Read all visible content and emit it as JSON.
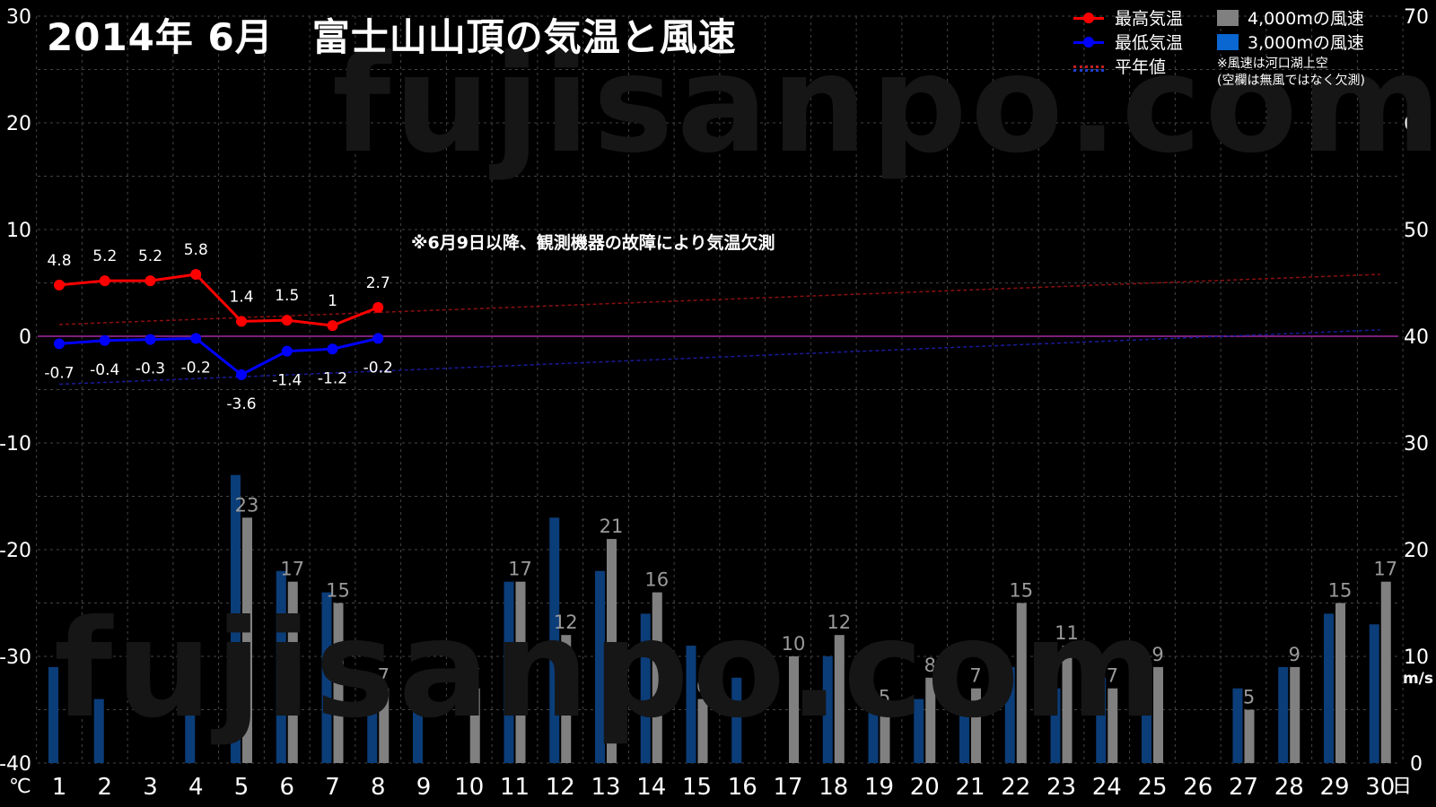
{
  "title": "2014年  6月　富士山山頂の気温と風速",
  "note": "※6月9日以降、観測機器の故障により気温欠測",
  "watermark": "fujisanpo.com",
  "legend": {
    "max_temp": "最高気温",
    "min_temp": "最低気温",
    "normal": "平年値",
    "wind_4000": "4,000mの風速",
    "wind_3000": "3,000mの風速",
    "note1": "※風速は河口湖上空",
    "note2": "(空欄は無風ではなく欠測)"
  },
  "colors": {
    "max_temp": "#ff0000",
    "min_temp": "#0000ff",
    "wind_4000": "#808080",
    "wind_3000": "#0b3d79",
    "legend_3000": "#0a66d0",
    "normal_max": "#8b1010",
    "normal_min": "#1a1a9a",
    "zero_line": "#7a207a",
    "grid": "#444444"
  },
  "chart_data": {
    "type": "bar+line",
    "x_unit": "日",
    "y_left_unit": "℃",
    "y_right_unit": "m/s",
    "ylim_left": [
      -40,
      30
    ],
    "ylim_right": [
      0,
      70
    ],
    "yticks_left": [
      30,
      20,
      10,
      0,
      -10,
      -20,
      -30,
      -40
    ],
    "yticks_right": [
      70,
      60,
      50,
      40,
      30,
      20,
      10,
      0
    ],
    "days": [
      1,
      2,
      3,
      4,
      5,
      6,
      7,
      8,
      9,
      10,
      11,
      12,
      13,
      14,
      15,
      16,
      17,
      18,
      19,
      20,
      21,
      22,
      23,
      24,
      25,
      26,
      27,
      28,
      29,
      30
    ],
    "max_temp": [
      4.8,
      5.2,
      5.2,
      5.8,
      1.4,
      1.5,
      1,
      2.7
    ],
    "max_temp_labels": [
      "4.8",
      "5.2",
      "5.2",
      "5.8",
      "1.4",
      "1.5",
      "1",
      "2.7"
    ],
    "min_temp": [
      -0.7,
      -0.4,
      -0.3,
      -0.2,
      -3.6,
      -1.4,
      -1.2,
      -0.2
    ],
    "min_temp_labels": [
      "-0.7",
      "-0.4",
      "-0.3",
      "-0.2",
      "-3.6",
      "-1.4",
      "-1.2",
      "-0.2"
    ],
    "normal_max": [
      1.1,
      5.8
    ],
    "normal_min": [
      -4.5,
      0.6
    ],
    "wind_3000": [
      9,
      6,
      null,
      11,
      27,
      18,
      16,
      8,
      6,
      null,
      17,
      23,
      18,
      14,
      11,
      8,
      null,
      10,
      5,
      6,
      5,
      9,
      7,
      8,
      8,
      null,
      7,
      9,
      14,
      13
    ],
    "wind_4000": [
      null,
      null,
      null,
      null,
      23,
      17,
      15,
      7,
      null,
      7,
      17,
      12,
      21,
      16,
      6,
      null,
      10,
      12,
      5,
      8,
      7,
      15,
      11,
      7,
      9,
      null,
      5,
      9,
      15,
      17
    ],
    "wind_4000_labels": [
      "",
      "",
      "",
      "",
      "23",
      "17",
      "15",
      "7",
      "",
      "7",
      "17",
      "12",
      "21",
      "16",
      "6",
      "",
      "10",
      "12",
      "5",
      "8",
      "7",
      "15",
      "11",
      "7",
      "9",
      "",
      "5",
      "9",
      "15",
      "17"
    ]
  }
}
